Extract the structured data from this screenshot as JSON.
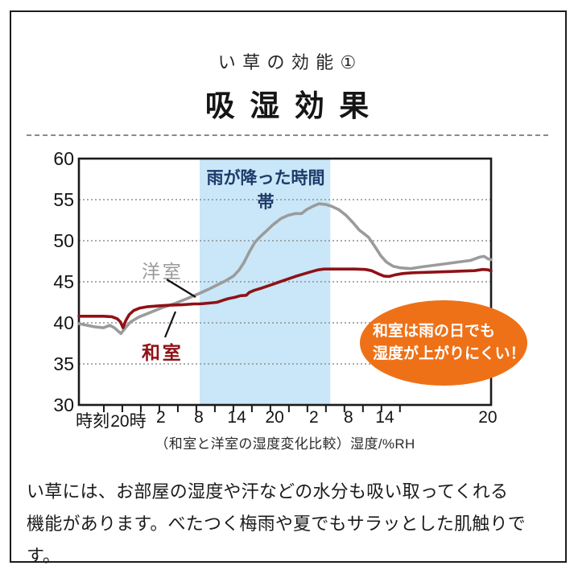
{
  "header": {
    "title_small": "い草の効能①",
    "title_large": "吸湿効果"
  },
  "chart": {
    "rain_label": "雨が降った時間帯",
    "series_label_gray": "洋室",
    "series_label_red": "和室",
    "callout_line1": "和室は雨の日でも",
    "callout_line2": "湿度が上がりにくい！",
    "x_axis_title": "時刻",
    "caption": "（和室と洋室の湿度変化比較）湿度/%RH"
  },
  "footer": {
    "line1": "い草には、お部屋の湿度や汗などの水分も吸い取ってくれる",
    "line2": "機能があります。べたつく梅雨や夏でもサラッとした肌触りです。"
  },
  "colors": {
    "rain_band": "#c9e7f8",
    "rain_label_text": "#1d3a69",
    "series_gray": "#9b9b9b",
    "series_red": "#8e1217",
    "callout_bg": "#ee7118",
    "callout_text": "#ffffff",
    "axis": "#1a1a1a",
    "gridline": "#8f8f8f"
  },
  "chart_data": {
    "type": "line",
    "title": "吸湿効果",
    "subtitle": "（和室と洋室の湿度変化比較）",
    "xlabel": "時刻",
    "ylabel": "湿度/%RH",
    "ylim": [
      30,
      60
    ],
    "yticks": [
      30,
      35,
      40,
      45,
      50,
      55,
      60
    ],
    "grid": "dotted horizontal",
    "legend_position": "inline-labels",
    "x_tick_labels": [
      {
        "label": "20時",
        "p": 12.0
      },
      {
        "label": "2",
        "p": 19.9
      },
      {
        "label": "8",
        "p": 29.1
      },
      {
        "label": "14",
        "p": 38.3
      },
      {
        "label": "20",
        "p": 47.5
      },
      {
        "label": "2",
        "p": 57.0
      },
      {
        "label": "8",
        "p": 65.4
      },
      {
        "label": "14",
        "p": 74.2
      },
      {
        "label": "20",
        "p": 99.2
      }
    ],
    "minor_tick_percents": [
      6.05,
      10.54,
      15.03,
      19.52,
      24.01,
      28.5,
      32.99,
      37.48,
      41.97,
      46.46,
      50.95,
      55.44,
      59.93,
      64.42,
      68.91,
      73.4,
      77.89
    ],
    "rain_band_percent": [
      29.3,
      61.0
    ],
    "rain_band_label": "雨が降った時間帯",
    "series": [
      {
        "name": "洋室",
        "color": "#9b9b9b",
        "points": [
          [
            0,
            39.9
          ],
          [
            2,
            39.7
          ],
          [
            4,
            39.5
          ],
          [
            6,
            39.4
          ],
          [
            7.5,
            39.7
          ],
          [
            8.6,
            39.4
          ],
          [
            10.2,
            38.7
          ],
          [
            11.3,
            39.4
          ],
          [
            12.5,
            40.1
          ],
          [
            14.5,
            40.7
          ],
          [
            17,
            41.2
          ],
          [
            20,
            41.8
          ],
          [
            23,
            42.3
          ],
          [
            26,
            42.9
          ],
          [
            29.3,
            43.6
          ],
          [
            31.5,
            44.1
          ],
          [
            33.5,
            44.6
          ],
          [
            35.5,
            45.1
          ],
          [
            37.5,
            45.7
          ],
          [
            38.8,
            46.4
          ],
          [
            40,
            47.3
          ],
          [
            41.3,
            48.6
          ],
          [
            42.7,
            49.8
          ],
          [
            44,
            50.5
          ],
          [
            45.5,
            51.2
          ],
          [
            47,
            51.9
          ],
          [
            49,
            52.7
          ],
          [
            50.8,
            53.1
          ],
          [
            52.5,
            53.3
          ],
          [
            54,
            53.3
          ],
          [
            55.3,
            53.8
          ],
          [
            56.8,
            54.2
          ],
          [
            58.2,
            54.5
          ],
          [
            60,
            54.4
          ],
          [
            61.3,
            54.2
          ],
          [
            63,
            53.8
          ],
          [
            64.8,
            53.1
          ],
          [
            66.5,
            52.2
          ],
          [
            68,
            51.3
          ],
          [
            69.3,
            50.8
          ],
          [
            70.3,
            50.4
          ],
          [
            71.8,
            49.3
          ],
          [
            73.2,
            48.2
          ],
          [
            74.6,
            47.4
          ],
          [
            76.2,
            46.9
          ],
          [
            78,
            46.7
          ],
          [
            80.5,
            46.6
          ],
          [
            83,
            46.8
          ],
          [
            86,
            47.0
          ],
          [
            89,
            47.2
          ],
          [
            92,
            47.4
          ],
          [
            95,
            47.6
          ],
          [
            97.2,
            48.0
          ],
          [
            98.3,
            48.1
          ],
          [
            99.2,
            47.8
          ],
          [
            100,
            47.7
          ]
        ]
      },
      {
        "name": "和室",
        "color": "#8e1217",
        "points": [
          [
            0,
            40.8
          ],
          [
            3,
            40.8
          ],
          [
            6,
            40.8
          ],
          [
            8,
            40.75
          ],
          [
            9.3,
            40.5
          ],
          [
            10.1,
            40.1
          ],
          [
            10.7,
            39.4
          ],
          [
            11.4,
            40.3
          ],
          [
            12.2,
            41.0
          ],
          [
            13.3,
            41.5
          ],
          [
            14.8,
            41.8
          ],
          [
            16.5,
            41.95
          ],
          [
            19,
            42.05
          ],
          [
            22,
            42.15
          ],
          [
            25,
            42.2
          ],
          [
            28,
            42.3
          ],
          [
            29.3,
            42.3
          ],
          [
            31.5,
            42.4
          ],
          [
            33.5,
            42.5
          ],
          [
            35,
            42.75
          ],
          [
            36.3,
            42.95
          ],
          [
            37.8,
            43.1
          ],
          [
            39.2,
            43.3
          ],
          [
            40.6,
            43.35
          ],
          [
            41.3,
            43.7
          ],
          [
            42.5,
            43.95
          ],
          [
            44.5,
            44.25
          ],
          [
            46.5,
            44.6
          ],
          [
            48.5,
            44.95
          ],
          [
            50.5,
            45.3
          ],
          [
            52.5,
            45.65
          ],
          [
            54.5,
            45.95
          ],
          [
            56.5,
            46.25
          ],
          [
            58,
            46.45
          ],
          [
            59.5,
            46.55
          ],
          [
            61.3,
            46.55
          ],
          [
            64,
            46.55
          ],
          [
            67,
            46.55
          ],
          [
            69.5,
            46.5
          ],
          [
            71,
            46.35
          ],
          [
            72.5,
            46.0
          ],
          [
            74,
            45.7
          ],
          [
            75.3,
            45.65
          ],
          [
            76.8,
            45.85
          ],
          [
            78.5,
            46.0
          ],
          [
            81,
            46.1
          ],
          [
            84,
            46.15
          ],
          [
            87,
            46.2
          ],
          [
            90,
            46.25
          ],
          [
            93,
            46.3
          ],
          [
            96,
            46.35
          ],
          [
            98,
            46.5
          ],
          [
            99.3,
            46.45
          ],
          [
            100,
            46.3
          ]
        ]
      }
    ],
    "annotations": [
      {
        "text": "雨が降った時間帯",
        "type": "band-label"
      },
      {
        "text": "和室は雨の日でも 湿度が上がりにくい！",
        "type": "callout-ellipse"
      }
    ]
  }
}
